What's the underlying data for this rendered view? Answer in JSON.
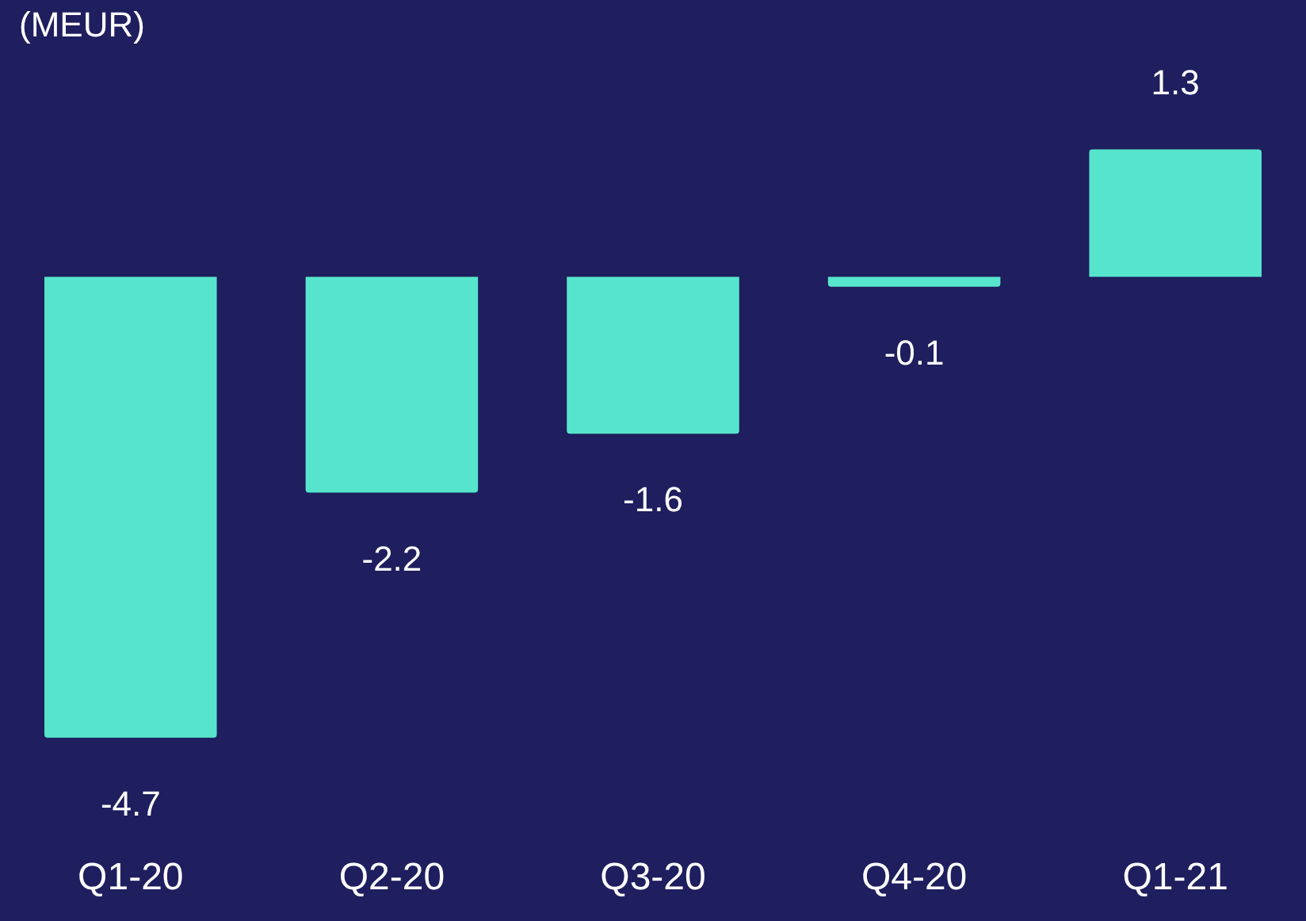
{
  "chart_data": {
    "type": "bar",
    "ylabel": "(MEUR)",
    "categories": [
      "Q1-20",
      "Q2-20",
      "Q3-20",
      "Q4-20",
      "Q1-21"
    ],
    "values": [
      -4.7,
      -2.2,
      -1.6,
      -0.1,
      1.3
    ],
    "color": "#56e5cc",
    "data_labels": true,
    "grid": false,
    "legend": false
  }
}
